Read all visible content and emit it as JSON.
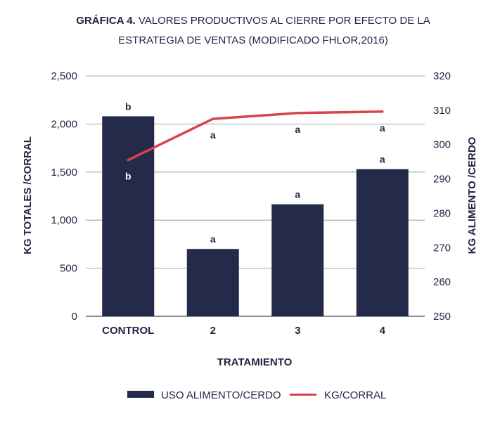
{
  "chart_data": {
    "type": "bar",
    "title_bold": "GRÁFICA 4.",
    "title_rest_line1": " VALORES PRODUCTIVOS AL CIERRE POR EFECTO DE LA",
    "title_line2": "ESTRATEGIA DE VENTAS (MODIFICADO FHLOR,2016)",
    "xlabel": "TRATAMIENTO",
    "ylabel": "KG TOTALES /CORRAL",
    "y2label": "KG ALIMENTO /CERDO",
    "categories": [
      "CONTROL",
      "2",
      "3",
      "4"
    ],
    "ylim": [
      0,
      2500
    ],
    "y2lim": [
      250,
      320
    ],
    "yticks": [
      "0",
      "500",
      "1,000",
      "1,500",
      "2,000",
      "2,500"
    ],
    "y2ticks": [
      "250",
      "260",
      "270",
      "280",
      "290",
      "300",
      "310",
      "320"
    ],
    "grid": true,
    "series": [
      {
        "name": "USO ALIMENTO/CERDO",
        "type": "bar",
        "axis": "left",
        "color": "#232a4a",
        "values": [
          2080,
          700,
          1165,
          1530
        ],
        "labels": [
          "b",
          "a",
          "a",
          "a"
        ]
      },
      {
        "name": "KG/CORRAL",
        "type": "line",
        "axis": "right",
        "color": "#d9434b",
        "values": [
          295.5,
          307.5,
          309.2,
          309.6
        ],
        "labels": [
          "b",
          "a",
          "a",
          "a"
        ]
      }
    ],
    "legend": "bottom-center"
  }
}
